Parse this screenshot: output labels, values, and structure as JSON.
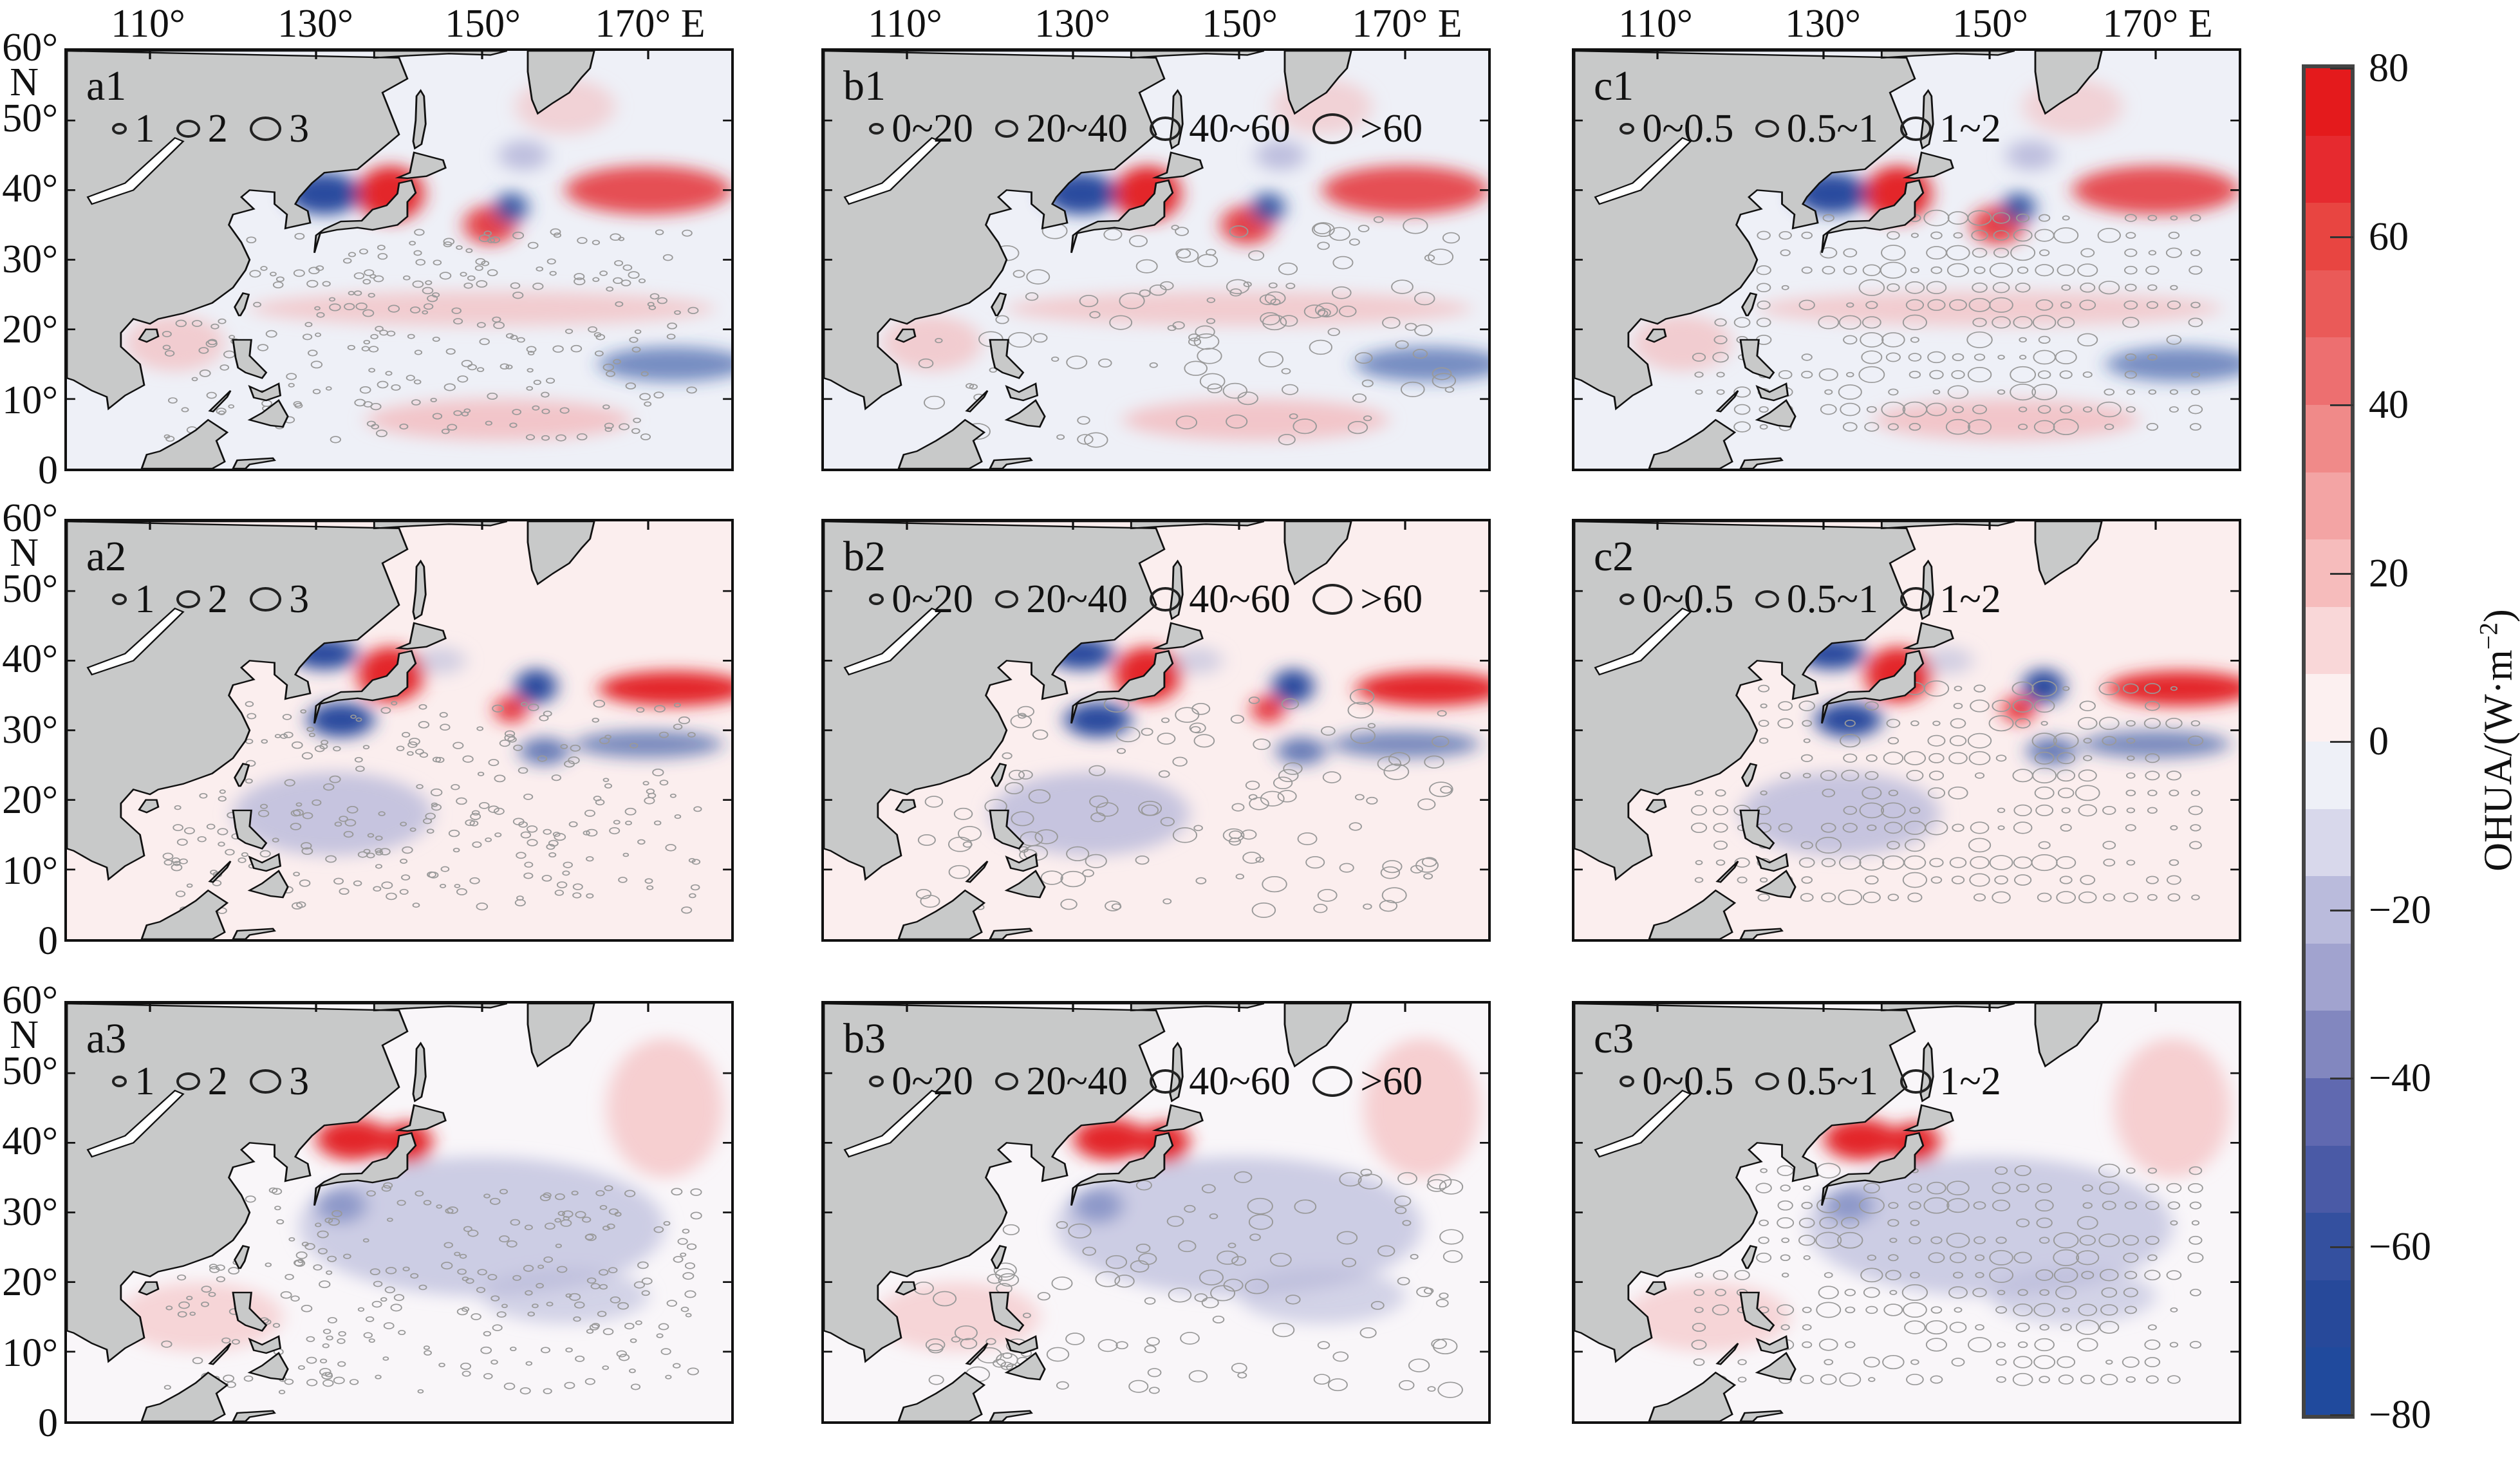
{
  "figure": {
    "lon_ticks": [
      "110°",
      "130°",
      "150°",
      "170° E"
    ],
    "lat_ticks": [
      "60°",
      "50°",
      "40°",
      "30°",
      "20°",
      "10°",
      "0"
    ],
    "lat_unit": "N",
    "columns": [
      {
        "legend": [
          {
            "size": 1,
            "label": "1"
          },
          {
            "size": 2,
            "label": "2"
          },
          {
            "size": 3,
            "label": "3"
          }
        ]
      },
      {
        "legend": [
          {
            "size": 1,
            "label": "0~20"
          },
          {
            "size": 2,
            "label": "20~40"
          },
          {
            "size": 3,
            "label": "40~60"
          },
          {
            "size": 4,
            "label": ">60"
          }
        ]
      },
      {
        "legend": [
          {
            "size": 1,
            "label": "0~0.5"
          },
          {
            "size": 2,
            "label": "0.5~1"
          },
          {
            "size": 3,
            "label": "1~2"
          }
        ]
      }
    ],
    "panels": [
      [
        "a1",
        "b1",
        "c1"
      ],
      [
        "a2",
        "b2",
        "c2"
      ],
      [
        "a3",
        "b3",
        "c3"
      ]
    ]
  },
  "colorbar": {
    "title": "OHUA/(W·m",
    "title_exp": "−2",
    "title_end": ")",
    "range": [
      -80,
      80
    ],
    "ticks": [
      "80",
      "60",
      "40",
      "20",
      "0",
      "−20",
      "−40",
      "−60",
      "−80"
    ],
    "tick_values": [
      80,
      60,
      40,
      20,
      0,
      -20,
      -40,
      -60,
      -80
    ],
    "colors": [
      "#e41a1c",
      "#e62a2f",
      "#e84541",
      "#ea5a58",
      "#ed6f70",
      "#f08a89",
      "#f3a4a4",
      "#f6bcbc",
      "#f9d7d8",
      "#fcf0f0",
      "#eef0f7",
      "#d8d8eb",
      "#babbdc",
      "#a1a3cf",
      "#8287bf",
      "#6069b0",
      "#4a5aa6",
      "#34509f",
      "#27499a",
      "#204a9d"
    ]
  },
  "colors": {
    "land": "#c8c9c9",
    "red": "#e3262b",
    "blue": "#2a4c9f",
    "pink": "#f4b4b6",
    "lightblue": "#b9badb"
  }
}
